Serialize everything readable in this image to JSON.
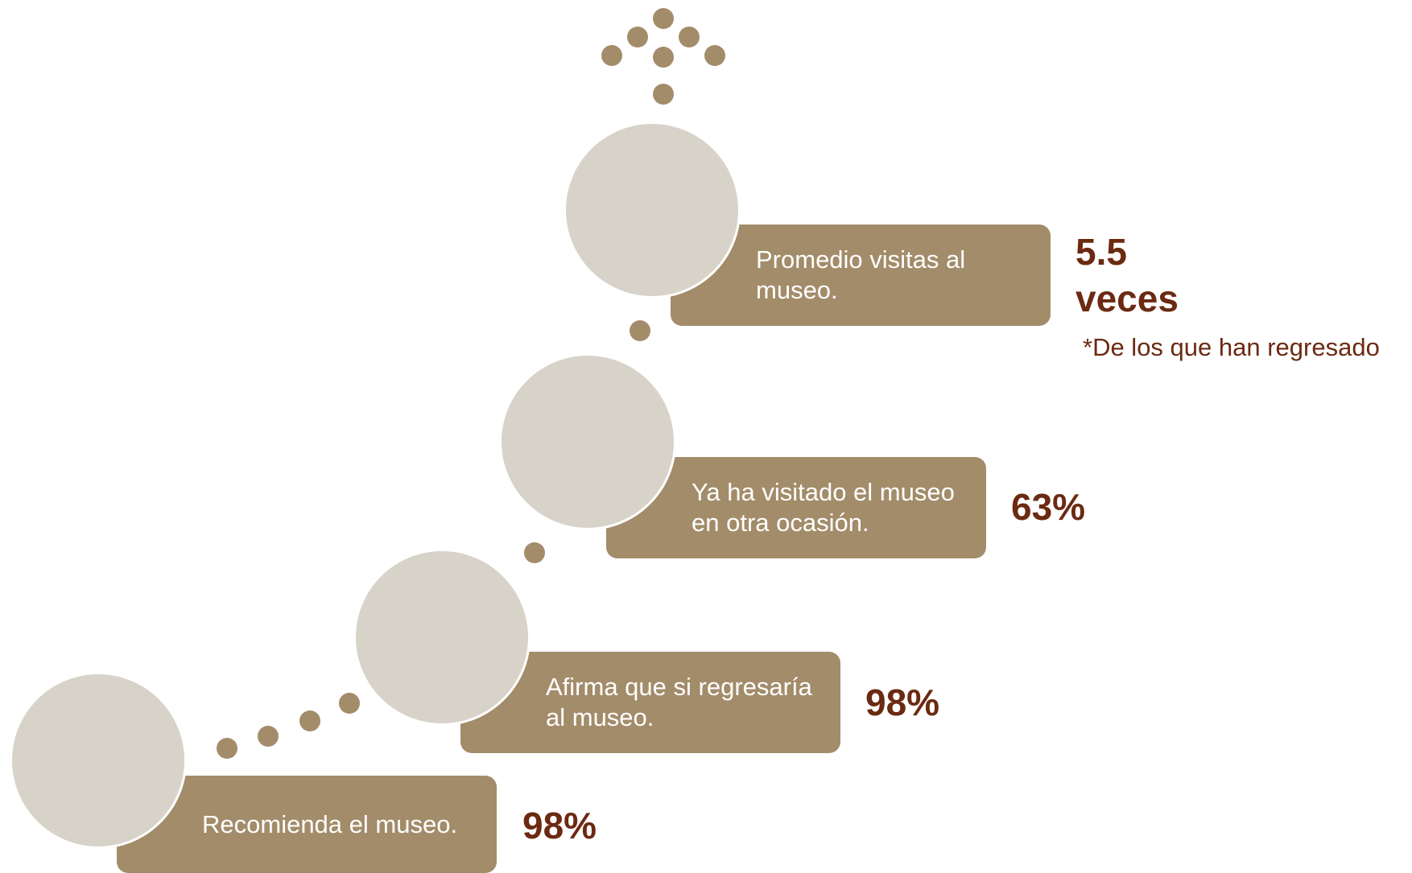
{
  "colors": {
    "box": "#a38c6a",
    "circle": "#d8d3c9",
    "value": "#6b2a12",
    "dot": "#a38c6a"
  },
  "steps": [
    {
      "label": "Recomienda el museo.",
      "value": "98%"
    },
    {
      "label": "Afirma que si regresaría\nal museo.",
      "value": "98%"
    },
    {
      "label": "Ya ha visitado el museo\nen otra ocasión.",
      "value": "63%"
    },
    {
      "label": "Promedio visitas al\nmuseo.",
      "value": "5.5\nveces",
      "note": "*De los que han regresado"
    }
  ]
}
